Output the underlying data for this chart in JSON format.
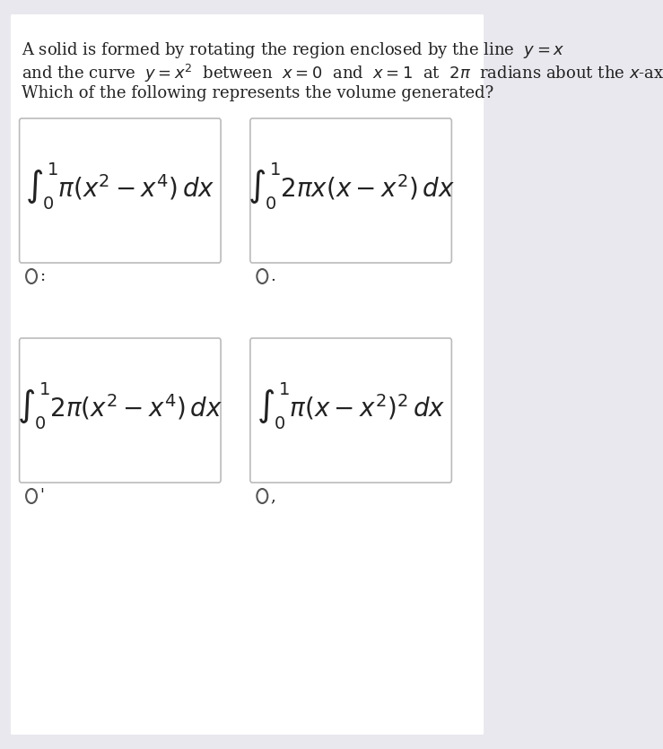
{
  "background_color": "#e8e8ee",
  "page_background": "#ffffff",
  "question_text_line1": "A solid is formed by rotating the region enclosed by the line  $y = x$",
  "question_text_line2": "and the curve  $y = x^2$  between  $x = 0$  and  $x = 1$  at  $2\\pi$  radians about the $x$-axis.",
  "question_text_line3": "Which of the following represents the volume generated?",
  "box_A_formula": "$\\int_0^1 \\pi(x^2 - x^4)\\, dx$",
  "box_B_formula": "$\\int_0^1 2\\pi x(x - x^2)\\, dx$",
  "box_C_formula": "$\\int_0^1 2\\pi(x^2 - x^4)\\, dx$",
  "box_D_formula": "$\\int_0^1 \\pi(x - x^2)^2\\, dx$",
  "label_A": ":",
  "label_B": ".",
  "label_C": "'",
  "label_D": ",",
  "box_border_color": "#bbbbbb",
  "box_fill_color": "#ffffff",
  "radio_color": "#555555",
  "text_color": "#222222",
  "font_size_question": 13,
  "font_size_formula": 20
}
